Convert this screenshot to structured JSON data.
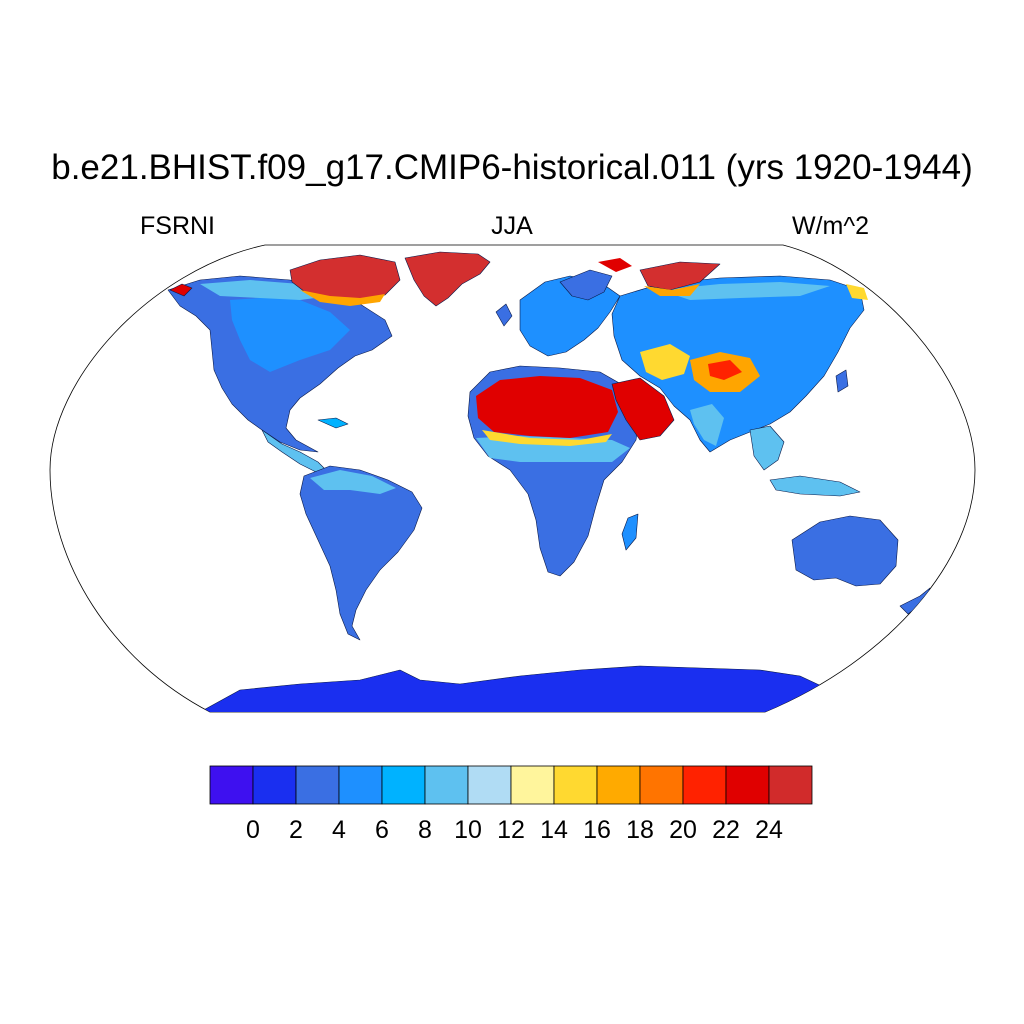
{
  "header": {
    "title": "b.e21.BHIST.f09_g17.CMIP6-historical.011 (yrs 1920-1944)",
    "left_label": "FSRNI",
    "center_label": "JJA",
    "right_label": "W/m^2"
  },
  "map": {
    "projection": "robinson",
    "coastlines": true,
    "background": "#ffffff",
    "land_regions": [
      {
        "name": "North America",
        "level": "4-6",
        "color": "#3a6fe3"
      },
      {
        "name": "Canadian Arctic Archipelago",
        "level": "24+",
        "color": "#d32f2f"
      },
      {
        "name": "Greenland",
        "level": "24+",
        "color": "#d32f2f"
      },
      {
        "name": "South America",
        "level": "4-6",
        "color": "#3a6fe3"
      },
      {
        "name": "Europe",
        "level": "6-8",
        "color": "#1e90ff"
      },
      {
        "name": "Sahara",
        "level": "20-24",
        "color": "#e00000"
      },
      {
        "name": "Arabian Peninsula",
        "level": "20-24",
        "color": "#e00000"
      },
      {
        "name": "Africa",
        "level": "4-6",
        "color": "#3a6fe3"
      },
      {
        "name": "Asia",
        "level": "6-8",
        "color": "#1e90ff"
      },
      {
        "name": "Tibetan Plateau",
        "level": "16-20",
        "color": "#ffa500"
      },
      {
        "name": "Australia",
        "level": "4-6",
        "color": "#3a6fe3"
      },
      {
        "name": "Antarctica",
        "level": "0-2",
        "color": "#1a2ff0"
      }
    ]
  },
  "colorbar": {
    "colors": [
      "#3e10f0",
      "#1a2ff0",
      "#3a6fe3",
      "#1e90ff",
      "#00b2ff",
      "#5ec1f0",
      "#b0dcf4",
      "#fff59c",
      "#ffd930",
      "#ffaa00",
      "#ff7400",
      "#ff2200",
      "#e00000",
      "#d12b2b"
    ],
    "tick_labels": [
      "0",
      "2",
      "4",
      "6",
      "8",
      "10",
      "12",
      "14",
      "16",
      "18",
      "20",
      "22",
      "24"
    ]
  }
}
